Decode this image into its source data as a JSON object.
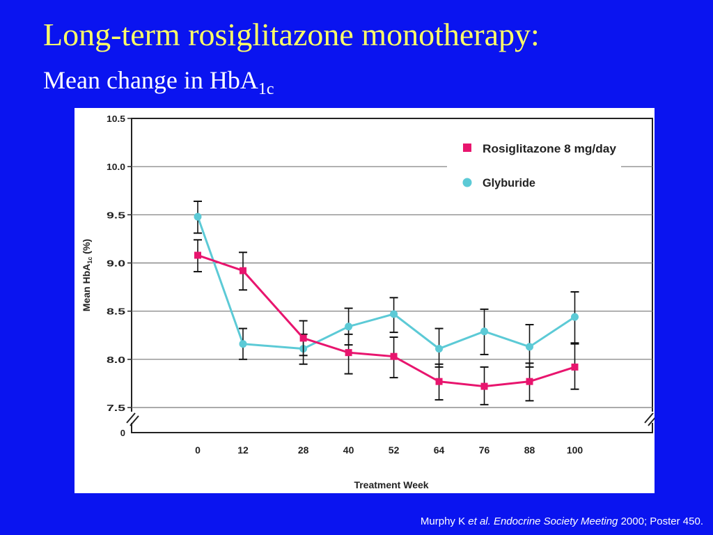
{
  "slide": {
    "title": "Long-term rosiglitazone monotherapy:",
    "subtitle_main": "Mean change in HbA",
    "subtitle_sub": "1c",
    "citation": {
      "author": "Murphy K ",
      "etal": "et al.",
      "meeting": " Endocrine Society Meeting",
      "rest": " 2000; Poster 450."
    }
  },
  "colors": {
    "background": "#0a14f0",
    "title": "#ffff66",
    "rosiglitazone": "#e8156e",
    "glyburide": "#5ccad6"
  },
  "chart_data": {
    "type": "line",
    "xlabel": "Treatment Week",
    "ylabel_main": "Mean HbA",
    "ylabel_sub": "1c",
    "ylabel_end": " (%)",
    "x": [
      0,
      12,
      28,
      40,
      52,
      64,
      76,
      88,
      100
    ],
    "x_tick_labels": [
      "0",
      "12",
      "28",
      "40",
      "52",
      "64",
      "76",
      "88",
      "100"
    ],
    "y_tick_labels": [
      "10.5",
      "10.0",
      "9.5",
      "9.0",
      "8.5",
      "8.0",
      "7.5"
    ],
    "y_ticks": [
      10.5,
      10.0,
      9.5,
      9.0,
      8.5,
      8.0,
      7.5
    ],
    "y_zero_label": "0",
    "ylim": [
      7.5,
      10.5
    ],
    "axis_break": true,
    "grid": true,
    "legend_position": "top-right",
    "series": [
      {
        "name": "Rosiglitazone 8 mg/day",
        "marker": "square",
        "values": [
          9.08,
          8.92,
          8.22,
          8.07,
          8.03,
          7.77,
          7.72,
          7.77,
          7.92
        ],
        "err_low": [
          8.91,
          8.72,
          8.04,
          7.85,
          7.81,
          7.58,
          7.53,
          7.57,
          7.69
        ],
        "err_high": [
          9.24,
          9.11,
          8.4,
          8.26,
          8.23,
          7.95,
          7.92,
          7.96,
          8.16
        ]
      },
      {
        "name": "Glyburide",
        "marker": "circle",
        "values": [
          9.48,
          8.16,
          8.11,
          8.34,
          8.47,
          8.11,
          8.29,
          8.13,
          8.44
        ],
        "err_low": [
          9.31,
          8.0,
          7.95,
          8.15,
          8.28,
          7.92,
          8.05,
          7.92,
          8.17
        ],
        "err_high": [
          9.64,
          8.32,
          8.26,
          8.53,
          8.64,
          8.32,
          8.52,
          8.36,
          8.7
        ]
      }
    ]
  }
}
